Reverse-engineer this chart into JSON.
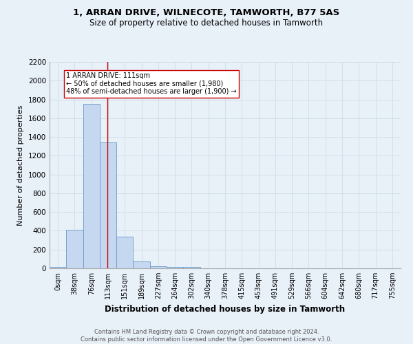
{
  "title": "1, ARRAN DRIVE, WILNECOTE, TAMWORTH, B77 5AS",
  "subtitle": "Size of property relative to detached houses in Tamworth",
  "xlabel": "Distribution of detached houses by size in Tamworth",
  "ylabel": "Number of detached properties",
  "footer_line1": "Contains HM Land Registry data © Crown copyright and database right 2024.",
  "footer_line2": "Contains public sector information licensed under the Open Government Licence v3.0.",
  "bin_labels": [
    "0sqm",
    "38sqm",
    "76sqm",
    "113sqm",
    "151sqm",
    "189sqm",
    "227sqm",
    "264sqm",
    "302sqm",
    "340sqm",
    "378sqm",
    "415sqm",
    "453sqm",
    "491sqm",
    "529sqm",
    "566sqm",
    "604sqm",
    "642sqm",
    "680sqm",
    "717sqm",
    "755sqm"
  ],
  "bar_values": [
    15,
    410,
    1750,
    1345,
    335,
    75,
    22,
    17,
    15,
    0,
    0,
    0,
    0,
    0,
    0,
    0,
    0,
    0,
    0,
    0,
    0
  ],
  "property_line_bin": 2.95,
  "annotation_text": "1 ARRAN DRIVE: 111sqm\n← 50% of detached houses are smaller (1,980)\n48% of semi-detached houses are larger (1,900) →",
  "bar_color": "#c5d8f0",
  "bar_edge_color": "#6699cc",
  "vline_color": "#cc0000",
  "annotation_box_color": "#ffffff",
  "annotation_box_edge": "#cc0000",
  "grid_color": "#ccdde8",
  "background_color": "#e8f0f8",
  "ylim": [
    0,
    2200
  ],
  "ytick_step": 200
}
